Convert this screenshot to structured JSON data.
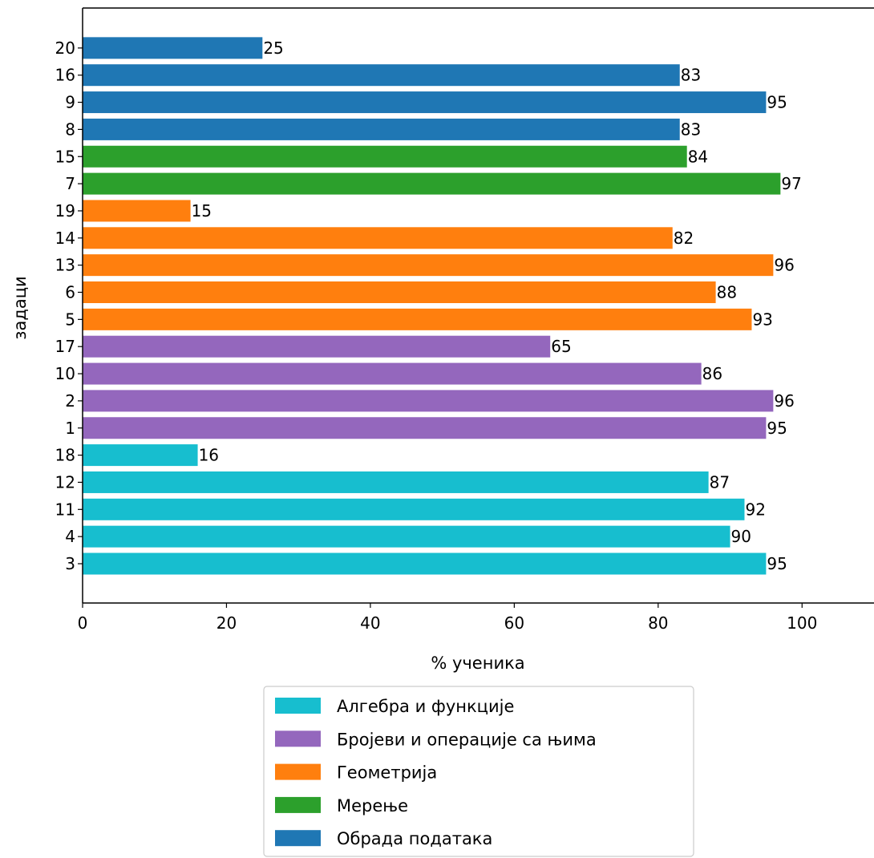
{
  "chart_data": {
    "type": "bar",
    "orientation": "horizontal",
    "title": "",
    "xlabel": "% ученика",
    "ylabel": "задаци",
    "xlim": [
      0,
      110
    ],
    "xticks": [
      0,
      20,
      40,
      60,
      80,
      100
    ],
    "grid": false,
    "legend_position": "bottom-outside",
    "categories": [
      "3",
      "4",
      "11",
      "12",
      "18",
      "1",
      "2",
      "10",
      "17",
      "5",
      "6",
      "13",
      "14",
      "19",
      "7",
      "15",
      "8",
      "9",
      "16",
      "20"
    ],
    "values": [
      95,
      90,
      92,
      87,
      16,
      95,
      96,
      86,
      65,
      93,
      88,
      96,
      82,
      15,
      97,
      84,
      83,
      95,
      83,
      25
    ],
    "bar_groups": [
      "Алгебра и функције",
      "Алгебра и функције",
      "Алгебра и функције",
      "Алгебра и функције",
      "Алгебра и функције",
      "Бројеви и операције са њима",
      "Бројеви и операције са њима",
      "Бројеви и операције са њима",
      "Бројеви и операције са њима",
      "Геометрија",
      "Геометрија",
      "Геометрија",
      "Геометрија",
      "Геометрија",
      "Мерење",
      "Мерење",
      "Обрада података",
      "Обрада података",
      "Обрада података",
      "Обрада података"
    ],
    "legend": [
      {
        "name": "Алгебра и функције",
        "color": "#17becf"
      },
      {
        "name": "Бројеви и операције са њима",
        "color": "#9467bd"
      },
      {
        "name": "Геометрија",
        "color": "#ff7f0e"
      },
      {
        "name": "Мерење",
        "color": "#2ca02c"
      },
      {
        "name": "Обрада података",
        "color": "#1f77b4"
      }
    ]
  }
}
